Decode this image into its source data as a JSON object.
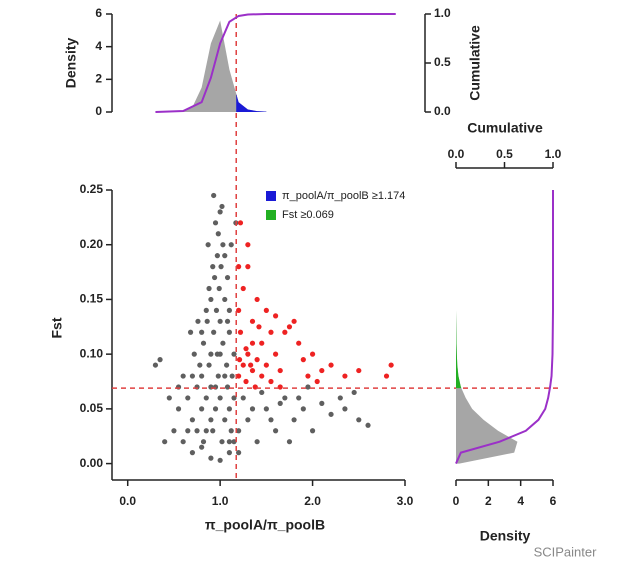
{
  "chart_data": [
    {
      "type": "scatter",
      "xlabel": "π_poolA/π_poolB",
      "ylabel": "Fst",
      "xlim": [
        -0.17,
        3.0
      ],
      "xticks": [
        {
          "value": 0,
          "label": "0.0"
        },
        {
          "value": 1,
          "label": "1.0"
        },
        {
          "value": 2,
          "label": "2.0"
        },
        {
          "value": 3,
          "label": "3.0"
        }
      ],
      "ylim": [
        -0.015,
        0.25
      ],
      "yticks": [
        {
          "value": 0,
          "label": "0.00"
        },
        {
          "value": 0.05,
          "label": "0.05"
        },
        {
          "value": 0.1,
          "label": "0.10"
        },
        {
          "value": 0.15,
          "label": "0.15"
        },
        {
          "value": 0.2,
          "label": "0.20"
        },
        {
          "value": 0.25,
          "label": "0.25"
        }
      ],
      "xthreshold": 1.174,
      "ythreshold": 0.069,
      "threshold_color": "#e04040",
      "legend": [
        {
          "name": "π_poolA/π_poolB ≥1.174",
          "color": "#1a1ad6"
        },
        {
          "name": "Fst ≥0.069",
          "color": "#22b022"
        }
      ],
      "series": [
        {
          "color": "#5f5f5f",
          "x": [
            0.95,
            1.0,
            0.9,
            1.05,
            0.85,
            0.98,
            1.1,
            0.92,
            1.02,
            0.88,
            1.08,
            0.8,
            0.75,
            0.7,
            0.65,
            1.12,
            0.97,
            1.03,
            0.93,
            1.0,
            0.96,
            1.05,
            0.99,
            0.94,
            1.01,
            0.97,
            1.03,
            0.98,
            0.95,
            1.0,
            0.93,
            1.02,
            1.08,
            0.9,
            0.86,
            1.1,
            1.15,
            0.82,
            0.78,
            0.72,
            0.6,
            0.55,
            0.5,
            0.45,
            0.35,
            0.3,
            0.4,
            0.6,
            0.7,
            0.8,
            0.9,
            1.0,
            1.1,
            1.15,
            1.2,
            1.3,
            1.4,
            1.5,
            1.6,
            1.7,
            1.8,
            1.9,
            2.0,
            2.1,
            2.2,
            2.3,
            2.35,
            2.45,
            2.6,
            1.25,
            1.35,
            1.45,
            1.55,
            1.65,
            1.75,
            1.2,
            0.85,
            0.88,
            0.92,
            1.05,
            1.08,
            0.8,
            0.7,
            0.65,
            0.55,
            0.75,
            0.82,
            0.9,
            1.07,
            1.13,
            1.1,
            0.76,
            0.68,
            1.17,
            1.12,
            0.87,
            1.0,
            0.9,
            0.95,
            1.05,
            1.15,
            0.8,
            0.85,
            1.1,
            1.95,
            2.5,
            1.85
          ],
          "values": [
            0.05,
            0.06,
            0.07,
            0.04,
            0.06,
            0.08,
            0.05,
            0.03,
            0.02,
            0.09,
            0.07,
            0.05,
            0.07,
            0.04,
            0.06,
            0.03,
            0.1,
            0.11,
            0.12,
            0.13,
            0.14,
            0.15,
            0.16,
            0.17,
            0.18,
            0.19,
            0.2,
            0.21,
            0.22,
            0.23,
            0.245,
            0.235,
            0.17,
            0.15,
            0.13,
            0.12,
            0.1,
            0.11,
            0.09,
            0.1,
            0.08,
            0.05,
            0.03,
            0.06,
            0.095,
            0.09,
            0.02,
            0.02,
            0.01,
            0.015,
            0.005,
            0.003,
            0.01,
            0.02,
            0.03,
            0.04,
            0.02,
            0.05,
            0.03,
            0.06,
            0.04,
            0.05,
            0.03,
            0.055,
            0.045,
            0.06,
            0.05,
            0.065,
            0.035,
            0.06,
            0.05,
            0.065,
            0.04,
            0.055,
            0.02,
            0.01,
            0.14,
            0.16,
            0.18,
            0.19,
            0.13,
            0.12,
            0.08,
            0.03,
            0.07,
            0.03,
            0.02,
            0.04,
            0.09,
            0.08,
            0.14,
            0.13,
            0.12,
            0.22,
            0.2,
            0.2,
            0.1,
            0.1,
            0.07,
            0.08,
            0.06,
            0.08,
            0.03,
            0.02,
            0.07,
            0.04,
            0.06
          ]
        },
        {
          "color": "#ee2222",
          "x": [
            1.2,
            1.25,
            1.3,
            1.22,
            1.28,
            1.35,
            1.4,
            1.45,
            1.5,
            1.55,
            1.6,
            1.65,
            1.7,
            1.8,
            1.9,
            2.0,
            2.1,
            2.2,
            2.35,
            2.5,
            2.8,
            2.85,
            1.2,
            1.25,
            1.3,
            1.22,
            1.35,
            1.4,
            1.5,
            1.6,
            1.75,
            1.85,
            1.3,
            1.2,
            1.45,
            1.55,
            1.38,
            1.65,
            1.28,
            1.35,
            1.42,
            1.95,
            2.05,
            1.21,
            1.33
          ],
          "values": [
            0.08,
            0.09,
            0.1,
            0.12,
            0.075,
            0.085,
            0.095,
            0.08,
            0.09,
            0.075,
            0.1,
            0.085,
            0.12,
            0.13,
            0.095,
            0.1,
            0.085,
            0.09,
            0.08,
            0.085,
            0.08,
            0.09,
            0.14,
            0.16,
            0.2,
            0.22,
            0.13,
            0.15,
            0.14,
            0.135,
            0.125,
            0.11,
            0.18,
            0.18,
            0.11,
            0.12,
            0.07,
            0.07,
            0.105,
            0.11,
            0.125,
            0.08,
            0.075,
            0.095,
            0.09
          ]
        }
      ]
    },
    {
      "type": "density",
      "ylabel": "Density",
      "y2label": "Cumulative",
      "highlight_color": "#1a1ad6",
      "xlim": [
        -0.17,
        3.0
      ],
      "ylim": [
        0,
        6
      ],
      "yticks": [
        0,
        2,
        4,
        6
      ],
      "y2lim": [
        0,
        1
      ],
      "y2ticks": [
        {
          "value": 0,
          "label": "0.0"
        },
        0.5,
        {
          "value": 1,
          "label": "1.0"
        }
      ],
      "series": [
        {
          "color": "#a6a6a6",
          "x": [
            0.3,
            0.4,
            0.5,
            0.6,
            0.7,
            0.8,
            0.9,
            1.0,
            1.1,
            1.2,
            1.3,
            1.4,
            1.5
          ],
          "values": [
            0,
            0,
            0.01,
            0.05,
            0.3,
            1.5,
            4.2,
            5.6,
            2.6,
            0.6,
            0.15,
            0.05,
            0.02
          ]
        },
        {
          "color": "#9b30c8",
          "axis": "y2",
          "x": [
            0.3,
            0.6,
            0.8,
            0.9,
            1.0,
            1.1,
            1.2,
            1.3,
            1.5,
            2.9
          ],
          "values": [
            0,
            0.01,
            0.1,
            0.35,
            0.7,
            0.92,
            0.98,
            0.995,
            1,
            1
          ]
        }
      ]
    },
    {
      "type": "density-horizontal",
      "xlabel": "Density",
      "x2label": "Cumulative",
      "highlight_color": "#22b022",
      "ylim": [
        -0.015,
        0.25
      ],
      "xlim": [
        0,
        6
      ],
      "xticks": [
        0,
        2,
        4,
        6
      ],
      "x2lim": [
        0,
        1
      ],
      "x2ticks": [
        {
          "value": 0,
          "label": "0.0"
        },
        0.5,
        {
          "value": 1,
          "label": "1.0"
        }
      ],
      "series": [
        {
          "color": "#a6a6a6",
          "y": [
            0.0,
            0.01,
            0.02,
            0.03,
            0.04,
            0.05,
            0.06,
            0.07,
            0.08,
            0.09,
            0.1,
            0.11,
            0.12,
            0.13,
            0.14
          ],
          "values": [
            0.2,
            3.6,
            3.8,
            2.6,
            1.7,
            1.0,
            0.6,
            0.3,
            0.15,
            0.08,
            0.05,
            0.03,
            0.02,
            0.01,
            0
          ]
        },
        {
          "color": "#9b30c8",
          "axis": "x2",
          "y": [
            0.0,
            0.01,
            0.02,
            0.03,
            0.04,
            0.05,
            0.06,
            0.07,
            0.08,
            0.1,
            0.14,
            0.25
          ],
          "values": [
            0,
            0.05,
            0.45,
            0.72,
            0.85,
            0.92,
            0.95,
            0.97,
            0.985,
            0.995,
            1,
            1
          ]
        }
      ]
    }
  ],
  "watermark": "SCIPainter"
}
